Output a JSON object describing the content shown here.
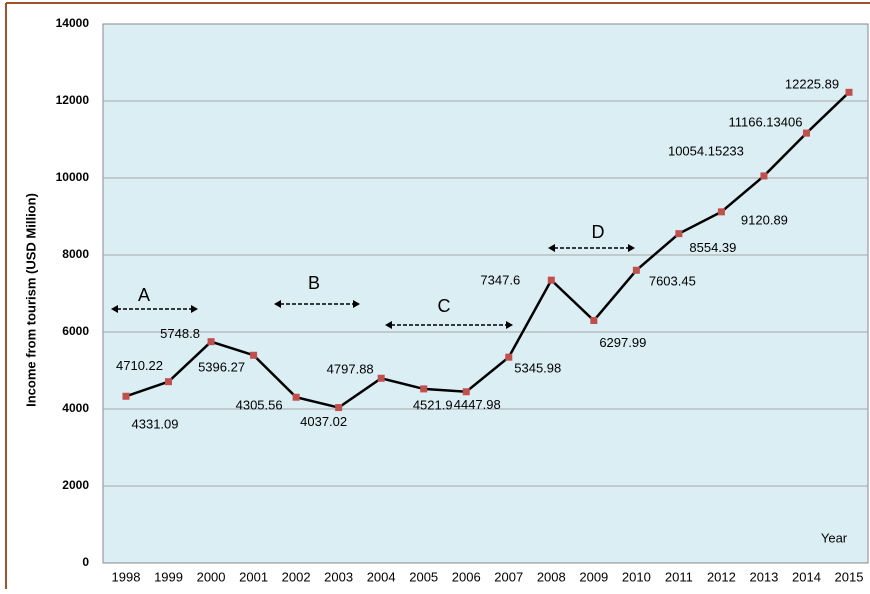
{
  "chart_data": {
    "type": "line",
    "y_label": "Income from tourism (USD Million)",
    "x_label": "Year",
    "categories": [
      "1998",
      "1999",
      "2000",
      "2001",
      "2002",
      "2003",
      "2004",
      "2005",
      "2006",
      "2007",
      "2008",
      "2009",
      "2010",
      "2011",
      "2012",
      "2013",
      "2014",
      "2015"
    ],
    "series": [
      {
        "name": "Income from tourism",
        "color": "#000000",
        "marker_color": "#c0504d",
        "values": [
          4331.09,
          4710.22,
          5748.8,
          5396.27,
          4305.56,
          4037.02,
          4797.88,
          4521.9,
          4447.98,
          5345.98,
          7347.6,
          6297.99,
          7603.45,
          8554.39,
          9120.89,
          10054.15233,
          11166.13406,
          12225.89
        ]
      }
    ],
    "ylim": [
      0,
      14000
    ],
    "yticks": [
      0,
      2000,
      4000,
      6000,
      8000,
      10000,
      12000,
      14000
    ],
    "grid": true,
    "annotations": [
      "A",
      "B",
      "C",
      "D"
    ]
  }
}
